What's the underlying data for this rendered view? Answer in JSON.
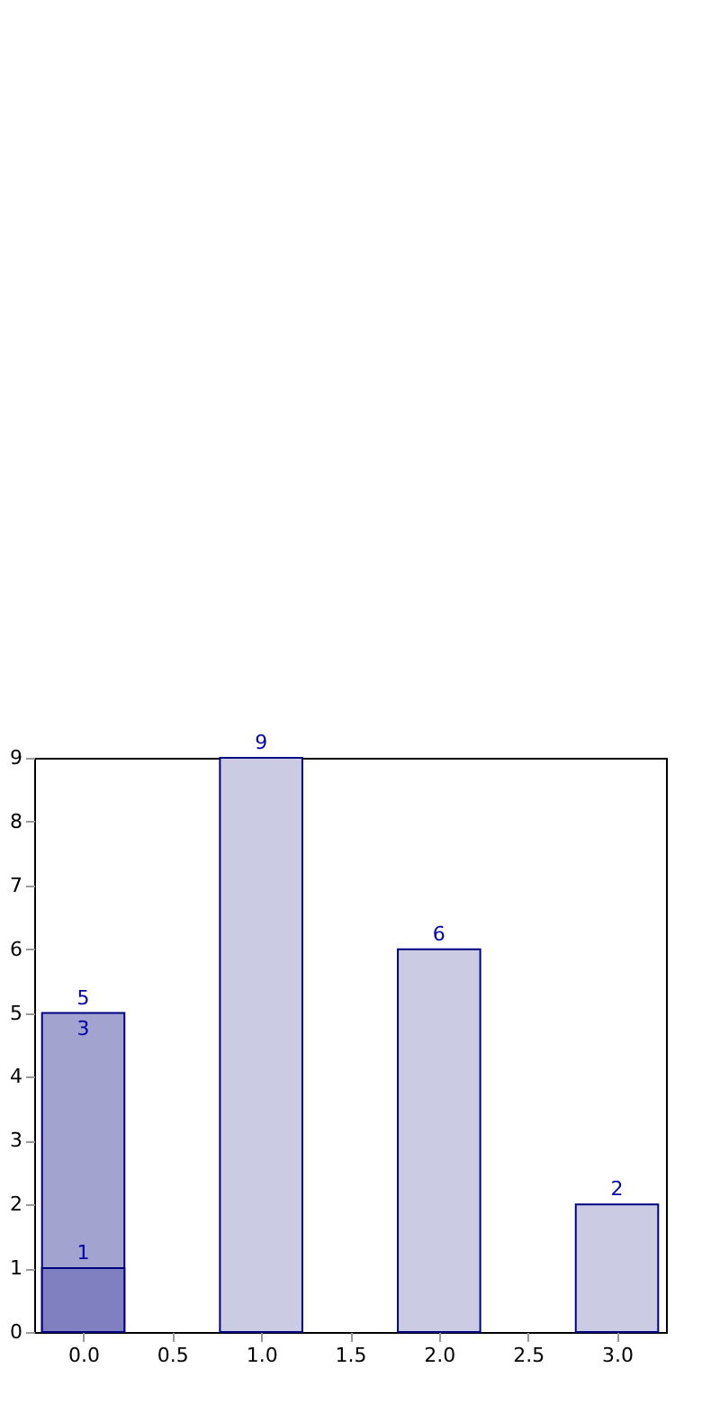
{
  "chart_data": {
    "type": "bar",
    "x": [
      0,
      1,
      2,
      3
    ],
    "series": [
      {
        "values": [
          5,
          9,
          6,
          2
        ],
        "colors": [
          "#a3a3d0",
          "#cbcbe4",
          "#cbcbe4",
          "#cbcbe4"
        ]
      },
      {
        "x": [
          0
        ],
        "values": [
          1
        ],
        "color": "#8080c0"
      }
    ],
    "data_labels": true,
    "annotations": [
      {
        "text": "3",
        "x": 0,
        "y": 5
      }
    ],
    "xlim": [
      -0.225,
      3.225
    ],
    "xticks": [
      {
        "value": 0,
        "label": "0.0"
      },
      {
        "value": 0.5,
        "label": "0.5"
      },
      {
        "value": 1,
        "label": "1.0"
      },
      {
        "value": 1.5,
        "label": "1.5"
      },
      {
        "value": 2,
        "label": "2.0"
      },
      {
        "value": 2.5,
        "label": "2.5"
      },
      {
        "value": 3,
        "label": "3.0"
      }
    ],
    "ylim": [
      0,
      9
    ],
    "yticks": [
      0,
      1,
      2,
      3,
      4,
      5,
      6,
      7,
      8,
      9
    ],
    "grid": false
  }
}
